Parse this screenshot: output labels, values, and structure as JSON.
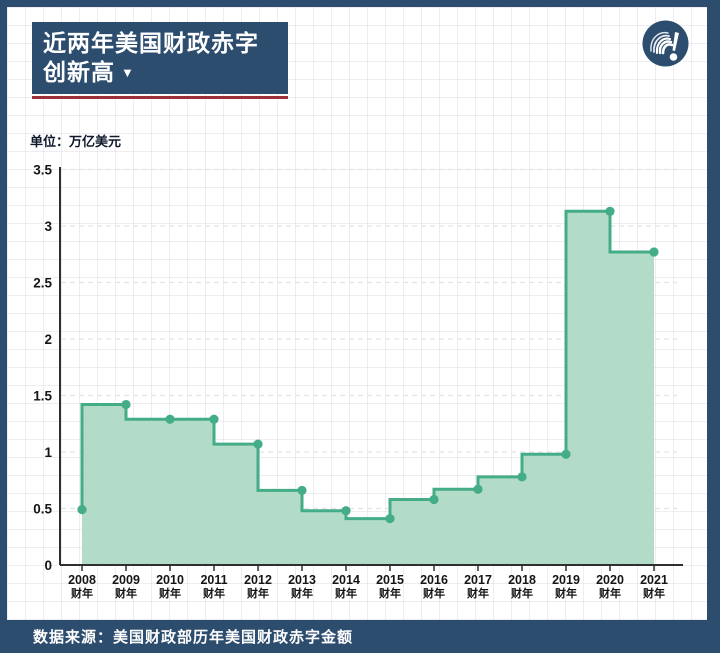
{
  "header": {
    "title_line1": "近两年美国财政赤字",
    "title_line2": "创新高",
    "triangle_icon": "▼"
  },
  "chart": {
    "unit_label": "单位：万亿美元"
  },
  "footer": {
    "source_label": "数据来源：美国财政部历年美国财政赤字金额"
  },
  "colors": {
    "navy": "#2d4d6f",
    "red_rule": "#9e3138",
    "line_green": "#44ad87",
    "area_green": "#b2dbc8",
    "gridline": "#e3e3e3",
    "axis": "#2f2f2f",
    "tick_text": "#151515"
  },
  "chart_data": {
    "type": "area",
    "step_mode": "pre",
    "title": "近两年美国财政赤字创新高",
    "unit": "万亿美元",
    "xlabel": "",
    "ylabel": "万亿美元",
    "categories": [
      "2008",
      "2009",
      "2010",
      "2011",
      "2012",
      "2013",
      "2014",
      "2015",
      "2016",
      "2017",
      "2018",
      "2019",
      "2020",
      "2021"
    ],
    "category_suffix": "财年",
    "values": [
      0.49,
      1.42,
      1.29,
      1.29,
      1.07,
      0.66,
      0.48,
      0.41,
      0.58,
      0.67,
      0.78,
      0.98,
      3.13,
      2.77
    ],
    "ylim": [
      0,
      3.5
    ],
    "ytick_step": 0.5,
    "grid": "horizontal-dashed",
    "legend_position": "none",
    "markers": "dots-at-each-year"
  }
}
